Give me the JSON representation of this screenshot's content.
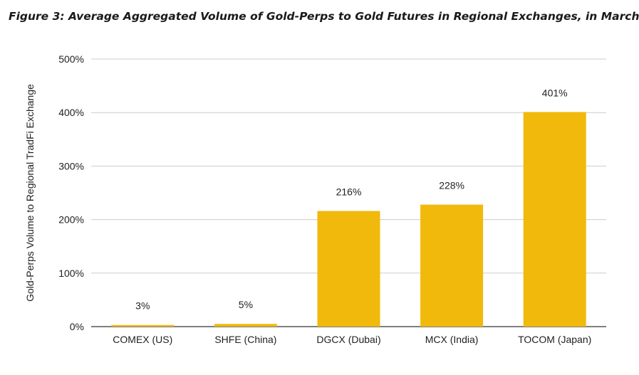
{
  "figure_title": "Figure 3: Average Aggregated Volume of Gold-Perps to Gold Futures in Regional Exchanges, in March",
  "colors": {
    "bar": "#F0B90B",
    "grid": "#cccccc",
    "axis": "#333333"
  },
  "chart_data": {
    "type": "bar",
    "title": "Figure 3: Average Aggregated Volume of Gold-Perps to Gold Futures in Regional Exchanges, in March",
    "xlabel": "",
    "ylabel": "Gold-Perps Volume to Regional TradFi Exchange",
    "categories": [
      "COMEX (US)",
      "SHFE (China)",
      "DGCX (Dubai)",
      "MCX (India)",
      "TOCOM (Japan)"
    ],
    "values": [
      3,
      5,
      216,
      228,
      401
    ],
    "data_labels": [
      "3%",
      "5%",
      "216%",
      "228%",
      "401%"
    ],
    "ylim": [
      0,
      500
    ],
    "yticks": [
      0,
      100,
      200,
      300,
      400,
      500
    ],
    "ytick_labels": [
      "0%",
      "100%",
      "200%",
      "300%",
      "400%",
      "500%"
    ],
    "grid": true,
    "legend": "none"
  }
}
